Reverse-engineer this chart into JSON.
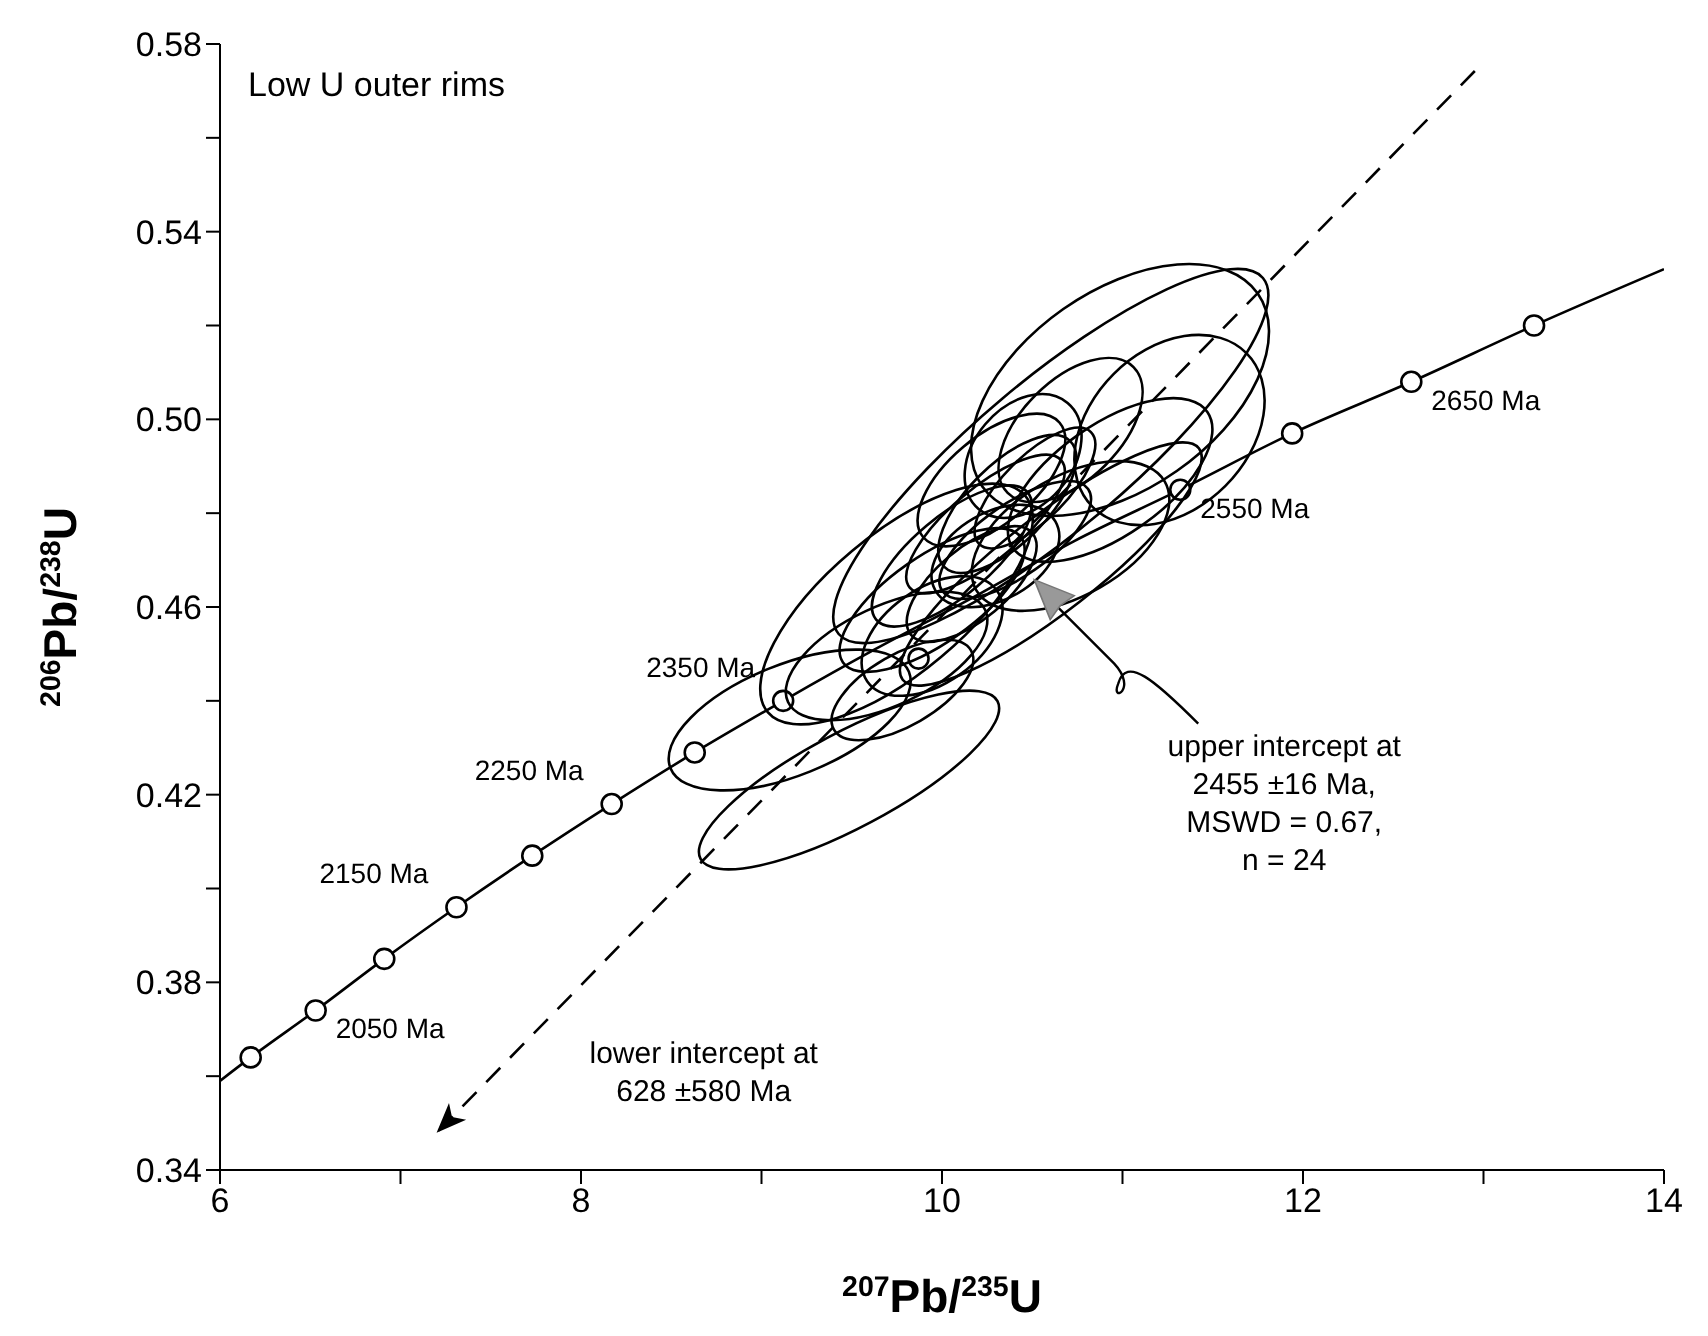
{
  "chart_data": {
    "type": "line",
    "title": "Low U outer rims",
    "xlabel": "$^{207}$Pb/$^{235}$U",
    "ylabel": "$^{206}$Pb/$^{238}$U",
    "xlim": [
      6,
      14
    ],
    "ylim": [
      0.34,
      0.58
    ],
    "xticks": [
      6,
      {
        "value": 7,
        "label": null
      },
      8,
      {
        "value": 9,
        "label": null
      },
      10,
      {
        "value": 11,
        "label": null
      },
      12,
      {
        "value": 13,
        "label": null
      },
      14
    ],
    "yticks": [
      0.34,
      {
        "value": 0.36,
        "label": null
      },
      0.38,
      {
        "value": 0.4,
        "label": null
      },
      0.42,
      {
        "value": 0.44,
        "label": null
      },
      0.46,
      {
        "value": 0.48,
        "label": null
      },
      {
        "value": 0.5,
        "label": "0.50"
      },
      {
        "value": 0.52,
        "label": null
      },
      0.54,
      {
        "value": 0.56,
        "label": null
      },
      0.58
    ],
    "annotations": [
      "upper intercept at\n2455 ±16 Ma,\nMSWD = 0.67,\nn = 24",
      "lower intercept at\n628 ±580 Ma",
      {
        "text": "2050 Ma",
        "x": 6.53,
        "y": 0.374
      },
      {
        "text": "2150 Ma",
        "x": 7.31,
        "y": 0.396
      },
      {
        "text": "2250 Ma",
        "x": 8.17,
        "y": 0.418
      },
      {
        "text": "2350 Ma",
        "x": 9.12,
        "y": 0.44
      },
      {
        "text": "2550 Ma",
        "x": 11.32,
        "y": 0.485
      },
      {
        "text": "2650 Ma",
        "x": 12.6,
        "y": 0.508
      }
    ],
    "series": [
      {
        "type": "line",
        "color": "#000000",
        "marker": "none",
        "x": [
          6,
          6.17,
          6.53,
          6.91,
          7.31,
          7.73,
          8.17,
          8.63,
          9.12,
          9.63,
          10.17,
          10.73,
          11.32,
          11.94,
          12.6,
          13.28,
          14
        ],
        "values": [
          0.359,
          0.364,
          0.374,
          0.385,
          0.396,
          0.407,
          0.418,
          0.429,
          0.44,
          0.451,
          0.462,
          0.474,
          0.485,
          0.497,
          0.508,
          0.52,
          0.532
        ]
      },
      {
        "type": "scatter",
        "color": "#000000",
        "marker": "circle",
        "x": [
          6.17,
          6.53,
          6.91,
          7.31,
          7.73,
          8.17,
          8.63,
          9.12,
          11.32,
          11.94,
          12.6,
          13.28
        ],
        "values": [
          0.364,
          0.374,
          0.385,
          0.396,
          0.407,
          0.418,
          0.429,
          0.44,
          0.485,
          0.497,
          0.508,
          0.52
        ]
      },
      {
        "type": "scatter",
        "color": "#000000",
        "marker": "circle",
        "x": [
          9.87
        ],
        "values": [
          0.449
        ]
      }
    ]
  }
}
